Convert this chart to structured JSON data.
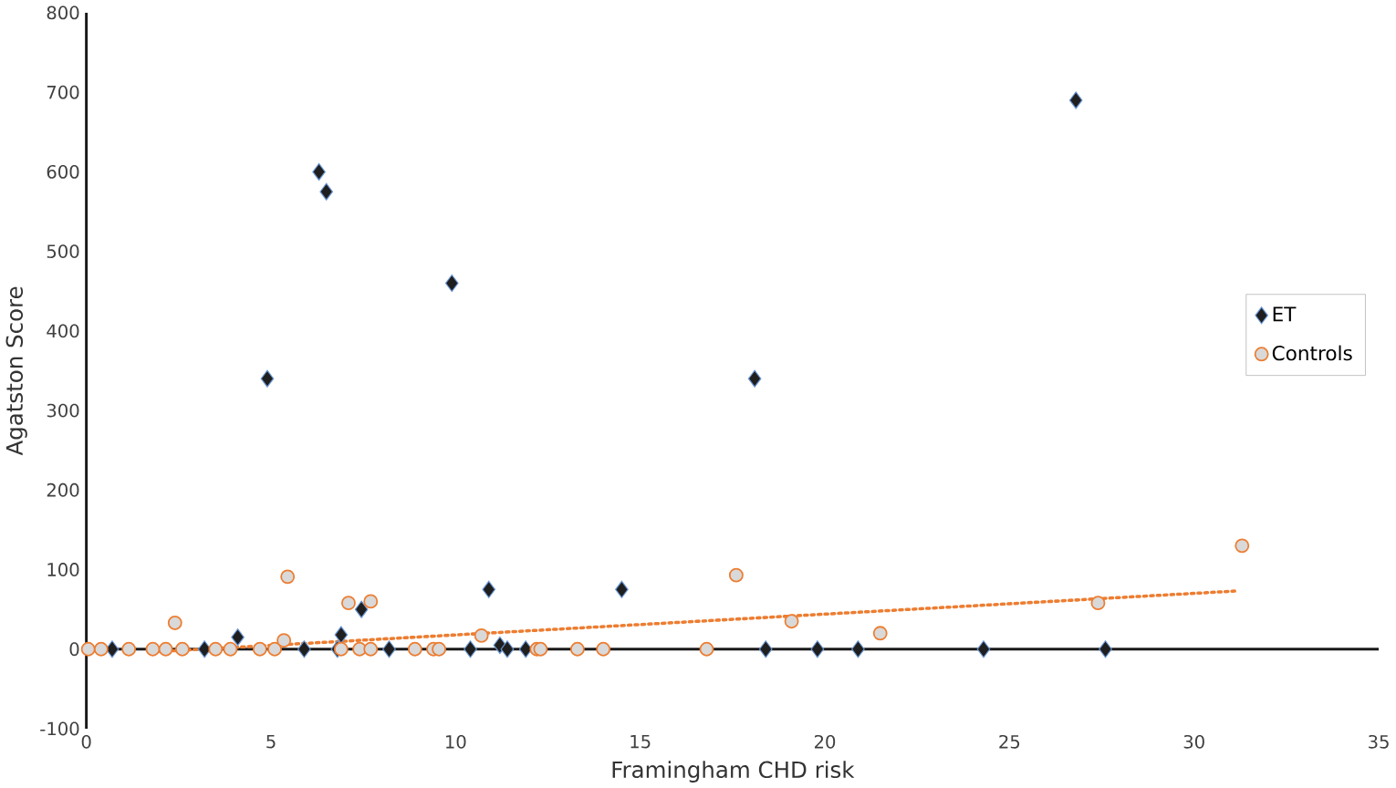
{
  "chart_data": {
    "type": "scatter",
    "xlabel": "Framingham CHD risk",
    "ylabel": "Agatston Score",
    "xlim": [
      0,
      35
    ],
    "ylim": [
      -100,
      800
    ],
    "xticks": [
      0,
      5,
      10,
      15,
      20,
      25,
      30,
      35
    ],
    "yticks": [
      -100,
      0,
      100,
      200,
      300,
      400,
      500,
      600,
      700,
      800
    ],
    "grid": false,
    "legend": "right",
    "ref_lines": [
      {
        "axis": "y",
        "value": 0,
        "color": "#1a1a1a"
      }
    ],
    "series": [
      {
        "name": "ET",
        "color": "#1f1f1f",
        "marker": "diamond",
        "x": [
          0.7,
          3.2,
          4.1,
          4.9,
          5.9,
          6.3,
          6.5,
          6.8,
          6.9,
          7.45,
          8.2,
          9.9,
          10.4,
          10.9,
          11.2,
          11.4,
          11.9,
          14.5,
          18.1,
          18.4,
          19.8,
          20.9,
          24.3,
          26.8,
          27.6
        ],
        "values": [
          0,
          0,
          15,
          340,
          0,
          600,
          575,
          0,
          18,
          50,
          0,
          460,
          0,
          75,
          5,
          0,
          0,
          75,
          340,
          0,
          0,
          0,
          0,
          690,
          0
        ]
      },
      {
        "name": "Controls",
        "color": "#ed7d31",
        "marker": "circle",
        "x": [
          0.05,
          0.4,
          1.15,
          1.8,
          2.15,
          2.4,
          2.6,
          3.5,
          3.9,
          4.7,
          5.1,
          5.35,
          5.45,
          6.9,
          7.1,
          7.4,
          7.7,
          7.7,
          8.9,
          9.4,
          9.55,
          10.7,
          12.2,
          12.3,
          13.3,
          14.0,
          16.8,
          17.6,
          19.1,
          21.5,
          27.4,
          31.3
        ],
        "values": [
          0,
          0,
          0,
          0,
          0,
          33,
          0,
          0,
          0,
          0,
          0,
          11,
          91,
          0,
          58,
          0,
          60,
          0,
          0,
          0,
          0,
          17,
          0,
          0,
          0,
          0,
          0,
          93,
          35,
          20,
          58,
          130
        ]
      },
      {
        "type": "line",
        "color": "#ed7d31",
        "line_style": "dotted",
        "marker": "none",
        "x": [
          2,
          31.1
        ],
        "values": [
          -3,
          73
        ]
      }
    ]
  }
}
